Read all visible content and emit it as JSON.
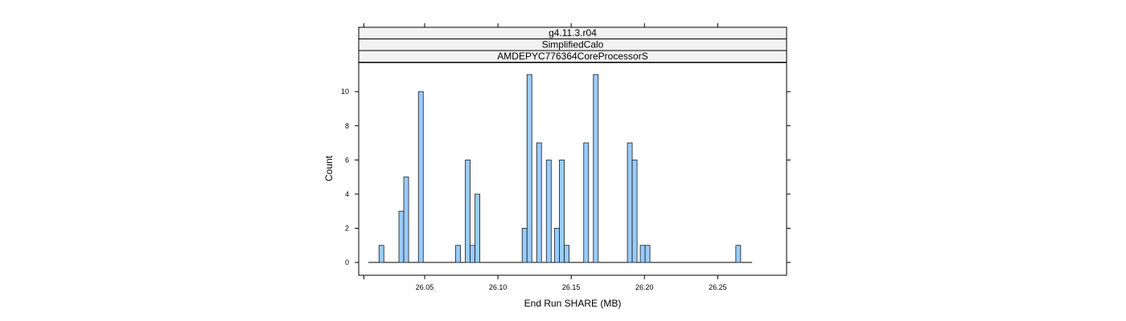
{
  "chart_data": {
    "type": "bar",
    "strips": [
      "g4.11.3.r04",
      "SimplifiedCalo",
      "AMDEPYC776364CoreProcessorS"
    ],
    "xlabel": "End Run SHARE (MB)",
    "ylabel": "Count",
    "xlim": [
      26.005,
      26.297
    ],
    "ylim": [
      -0.75,
      11.7
    ],
    "x_ticks": [
      26.05,
      26.1,
      26.15,
      26.2,
      26.25
    ],
    "x_tick_labels": [
      "26.05",
      "26.10",
      "26.15",
      "26.20",
      "26.25"
    ],
    "y_ticks": [
      0,
      2,
      4,
      6,
      8,
      10
    ],
    "y_tick_labels": [
      "0",
      "2",
      "4",
      "6",
      "8",
      "10"
    ],
    "baseline_range": [
      26.0115,
      26.2735
    ],
    "bin_width": 0.0033,
    "bars": [
      {
        "x": 26.0205,
        "count": 1
      },
      {
        "x": 26.0341,
        "count": 3
      },
      {
        "x": 26.0374,
        "count": 5
      },
      {
        "x": 26.0474,
        "count": 10
      },
      {
        "x": 26.0728,
        "count": 1
      },
      {
        "x": 26.0794,
        "count": 6
      },
      {
        "x": 26.0827,
        "count": 1
      },
      {
        "x": 26.086,
        "count": 4
      },
      {
        "x": 26.1182,
        "count": 2
      },
      {
        "x": 26.1215,
        "count": 11
      },
      {
        "x": 26.1281,
        "count": 7
      },
      {
        "x": 26.1347,
        "count": 6
      },
      {
        "x": 26.1403,
        "count": 2
      },
      {
        "x": 26.1436,
        "count": 6
      },
      {
        "x": 26.1469,
        "count": 1
      },
      {
        "x": 26.1602,
        "count": 7
      },
      {
        "x": 26.1668,
        "count": 11
      },
      {
        "x": 26.19,
        "count": 7
      },
      {
        "x": 26.1933,
        "count": 6
      },
      {
        "x": 26.1988,
        "count": 1
      },
      {
        "x": 26.2021,
        "count": 1
      },
      {
        "x": 26.264,
        "count": 1
      }
    ],
    "bar_fill": "#99ccff",
    "bar_stroke": "#1a1a1a",
    "strip_fill": "#f2f2f2",
    "grid": false
  }
}
